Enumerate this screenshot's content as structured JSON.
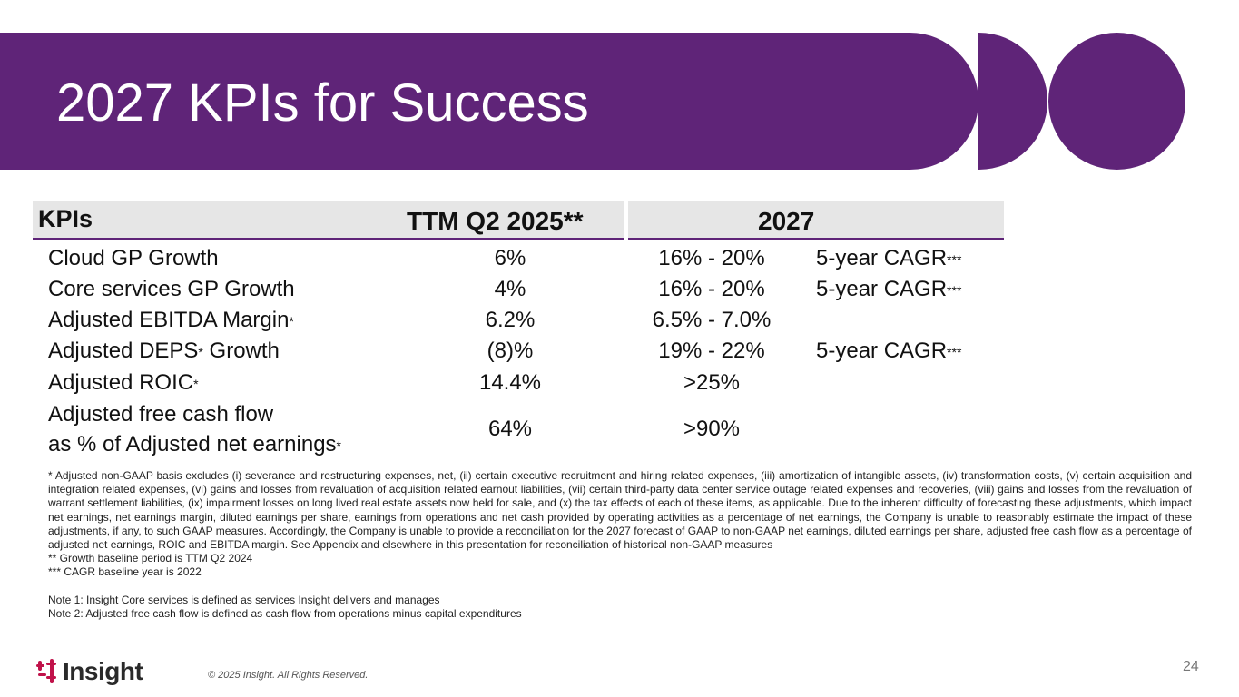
{
  "slide": {
    "title": "2027 KPIs for Success",
    "page_number": "24",
    "copyright": "© 2025 Insight. All Rights Reserved.",
    "brand_color": "#5f2478"
  },
  "table": {
    "headers": {
      "kpis": "KPIs",
      "ttm": "TTM Q2 2025**",
      "target": "2027"
    },
    "rows": [
      {
        "label": "Cloud GP Growth",
        "label_star": "",
        "label_suffix": "",
        "ttm": "6%",
        "target": "16% - 20%",
        "cagr": "5-year CAGR",
        "cagr_star": "***"
      },
      {
        "label": "Core services GP Growth",
        "label_star": "",
        "label_suffix": "",
        "ttm": "4%",
        "target": "16% - 20%",
        "cagr": "5-year CAGR",
        "cagr_star": "***"
      },
      {
        "label": "Adjusted EBITDA Margin",
        "label_star": "*",
        "label_suffix": "",
        "ttm": "6.2%",
        "target": "6.5% - 7.0%",
        "cagr": "",
        "cagr_star": ""
      },
      {
        "label": "Adjusted DEPS",
        "label_star": "*",
        "label_suffix": " Growth",
        "ttm": "(8)%",
        "target": "19% - 22%",
        "cagr": "5-year CAGR",
        "cagr_star": "***"
      },
      {
        "label": "Adjusted ROIC",
        "label_star": "*",
        "label_suffix": "",
        "ttm": "14.4%",
        "target": ">25%",
        "cagr": "",
        "cagr_star": ""
      }
    ],
    "last_row": {
      "label_line1": "Adjusted free cash flow",
      "label_line2": "as % of Adjusted net earnings",
      "label_star": "*",
      "ttm": "64%",
      "target": ">90%"
    }
  },
  "footnotes": {
    "main": "* Adjusted non-GAAP basis excludes (i) severance and restructuring expenses, net, (ii) certain executive recruitment and hiring related expenses, (iii) amortization of intangible assets, (iv) transformation costs, (v) certain acquisition and integration related expenses, (vi) gains and losses from revaluation of acquisition related earnout liabilities, (vii) certain third-party data center service outage related expenses and recoveries, (viii) gains and losses from the revaluation of warrant settlement liabilities, (ix) impairment losses on long lived real estate assets now held for sale, and (x) the tax effects of each of these items, as applicable. Due to the inherent difficulty of forecasting these adjustments, which impact net earnings, net earnings margin, diluted earnings per share, earnings from operations and net cash provided by operating activities as a percentage of net earnings, the Company is unable to reasonably estimate the impact of these adjustments, if any, to such GAAP measures. Accordingly, the Company is unable to provide a reconciliation for the 2027 forecast of GAAP to non-GAAP net earnings, diluted earnings per share, adjusted free cash flow as a percentage of adjusted net earnings, ROIC and EBITDA margin. See Appendix and elsewhere in this presentation for reconciliation of historical non-GAAP measures",
    "growth_baseline": "** Growth baseline period is TTM Q2 2024",
    "cagr_baseline": "*** CAGR baseline year is 2022",
    "note1": "Note 1: Insight Core services is defined as services Insight delivers and manages",
    "note2": "Note 2: Adjusted free cash flow is defined as cash flow from operations minus capital expenditures"
  },
  "logo": {
    "text": "Insight",
    "icon": "insight-logo-icon",
    "color": "#c0124a"
  }
}
